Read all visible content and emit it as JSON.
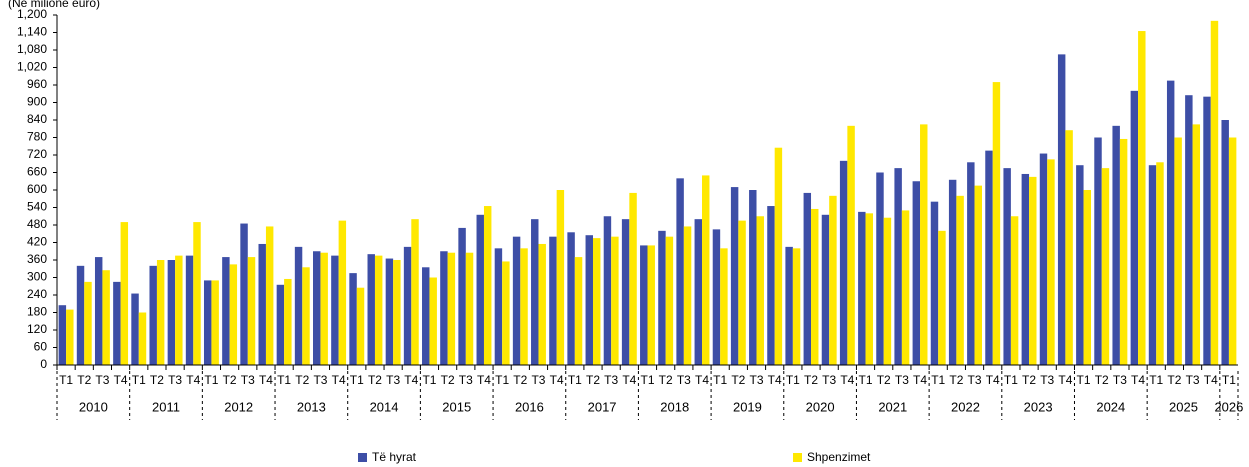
{
  "chart_data": {
    "type": "bar",
    "y_label": "(Në milionë euro)",
    "categories": [
      "T1",
      "T2",
      "T3",
      "T4",
      "T1",
      "T2",
      "T3",
      "T4",
      "T1",
      "T2",
      "T3",
      "T4",
      "T1",
      "T2",
      "T3",
      "T4",
      "T1",
      "T2",
      "T3",
      "T4",
      "T1",
      "T2",
      "T3",
      "T4",
      "T1",
      "T2",
      "T3",
      "T4",
      "T1",
      "T2",
      "T3",
      "T4",
      "T1",
      "T2",
      "T3",
      "T4",
      "T1",
      "T2",
      "T3",
      "T4",
      "T1",
      "T2",
      "T3",
      "T4",
      "T1",
      "T2",
      "T3",
      "T4",
      "T1",
      "T2",
      "T3",
      "T4",
      "T1",
      "T2",
      "T3",
      "T4",
      "T1",
      "T2",
      "T3",
      "T4",
      "T1",
      "T2",
      "T3",
      "T4",
      "T1"
    ],
    "years": [
      "2010",
      "2011",
      "2012",
      "2013",
      "2014",
      "2015",
      "2016",
      "2017",
      "2018",
      "2019",
      "2020",
      "2021",
      "2022",
      "2023",
      "2024",
      "2025",
      "2026"
    ],
    "series": [
      {
        "name": "Të hyrat",
        "color": "#3d4ea6",
        "values": [
          205,
          340,
          370,
          285,
          245,
          340,
          360,
          375,
          290,
          370,
          485,
          415,
          275,
          405,
          390,
          375,
          315,
          380,
          365,
          405,
          335,
          390,
          470,
          515,
          400,
          440,
          500,
          440,
          455,
          445,
          510,
          500,
          410,
          460,
          640,
          500,
          465,
          610,
          600,
          545,
          405,
          590,
          515,
          700,
          525,
          660,
          675,
          630,
          560,
          635,
          695,
          735,
          675,
          655,
          725,
          1065,
          685,
          780,
          820,
          940,
          685,
          975,
          925,
          920,
          840
        ]
      },
      {
        "name": "Shpenzimet",
        "color": "#ffe800",
        "values": [
          190,
          285,
          325,
          490,
          180,
          360,
          375,
          490,
          290,
          345,
          370,
          475,
          295,
          335,
          385,
          495,
          265,
          375,
          360,
          500,
          300,
          385,
          385,
          545,
          355,
          400,
          415,
          600,
          370,
          435,
          440,
          590,
          410,
          440,
          475,
          650,
          400,
          495,
          510,
          745,
          400,
          535,
          580,
          820,
          520,
          505,
          530,
          825,
          460,
          580,
          615,
          970,
          510,
          645,
          705,
          805,
          600,
          675,
          775,
          1145,
          695,
          780,
          825,
          1180,
          780
        ]
      }
    ],
    "ylim": [
      0,
      1200
    ],
    "yticks": [
      0,
      60,
      120,
      180,
      240,
      300,
      360,
      420,
      480,
      540,
      600,
      660,
      720,
      780,
      840,
      900,
      960,
      {
        "value": 1020,
        "label": "1,020"
      },
      {
        "value": 1080,
        "label": "1,080"
      },
      {
        "value": 1140,
        "label": "1,140"
      },
      {
        "value": 1200,
        "label": "1,200"
      }
    ]
  }
}
